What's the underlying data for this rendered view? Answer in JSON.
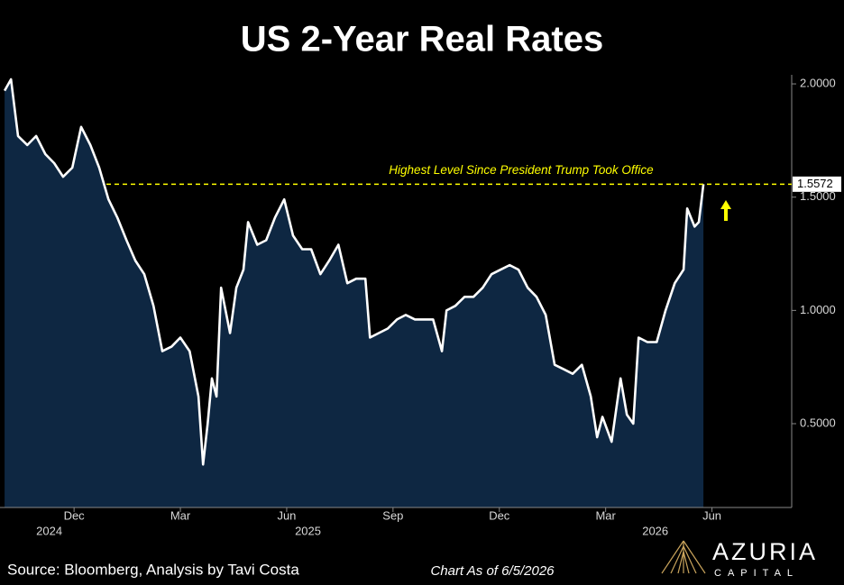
{
  "chart_data": {
    "type": "area",
    "title": "US 2-Year Real Rates",
    "color": "#ffffff",
    "fill_color": "#0e2742",
    "x": [
      -1.96,
      -1.78,
      -1.58,
      -1.32,
      -1.07,
      -0.81,
      -0.56,
      -0.31,
      -0.05,
      0.2,
      0.46,
      0.71,
      0.97,
      1.22,
      1.48,
      1.73,
      1.98,
      2.24,
      2.49,
      2.75,
      3.0,
      3.26,
      3.51,
      3.64,
      3.77,
      3.89,
      4.02,
      4.15,
      4.4,
      4.58,
      4.78,
      4.91,
      5.17,
      5.42,
      5.67,
      5.93,
      6.18,
      6.44,
      6.69,
      6.95,
      7.2,
      7.46,
      7.71,
      7.96,
      8.22,
      8.35,
      8.6,
      8.85,
      9.11,
      9.36,
      9.62,
      9.87,
      10.13,
      10.38,
      10.51,
      10.76,
      11.02,
      11.27,
      11.53,
      11.78,
      12.04,
      12.29,
      12.54,
      12.8,
      13.05,
      13.31,
      13.56,
      13.82,
      14.07,
      14.33,
      14.58,
      14.76,
      14.91,
      15.17,
      15.42,
      15.6,
      15.78,
      15.93,
      16.18,
      16.44,
      16.69,
      16.95,
      17.2,
      17.3,
      17.51,
      17.63,
      17.76
    ],
    "values": [
      1.97,
      2.02,
      1.77,
      1.73,
      1.77,
      1.69,
      1.65,
      1.59,
      1.63,
      1.81,
      1.73,
      1.63,
      1.49,
      1.41,
      1.31,
      1.22,
      1.16,
      1.02,
      0.82,
      0.84,
      0.88,
      0.82,
      0.62,
      0.32,
      0.5,
      0.7,
      0.62,
      1.1,
      0.9,
      1.1,
      1.18,
      1.39,
      1.29,
      1.31,
      1.41,
      1.49,
      1.33,
      1.27,
      1.27,
      1.16,
      1.22,
      1.29,
      1.12,
      1.14,
      1.14,
      0.88,
      0.9,
      0.92,
      0.96,
      0.98,
      0.96,
      0.96,
      0.96,
      0.82,
      1.0,
      1.02,
      1.06,
      1.06,
      1.1,
      1.16,
      1.18,
      1.2,
      1.18,
      1.1,
      1.06,
      0.98,
      0.76,
      0.74,
      0.72,
      0.76,
      0.62,
      0.44,
      0.53,
      0.42,
      0.7,
      0.54,
      0.5,
      0.88,
      0.86,
      0.86,
      1.0,
      1.12,
      1.18,
      1.45,
      1.37,
      1.39,
      1.5572
    ],
    "xlim": [
      -2.09,
      20.25
    ],
    "ylim": [
      0.13,
      2.04
    ],
    "xticks": [
      {
        "value": 0,
        "label": "Dec"
      },
      {
        "value": 3,
        "label": "Mar"
      },
      {
        "value": 6,
        "label": "Jun"
      },
      {
        "value": 9,
        "label": "Sep"
      },
      {
        "value": 12,
        "label": "Dec"
      },
      {
        "value": 15,
        "label": "Mar"
      },
      {
        "value": 18,
        "label": "Jun"
      }
    ],
    "year_labels": [
      {
        "value": -0.7,
        "label": "2024"
      },
      {
        "value": 6.6,
        "label": "2025"
      },
      {
        "value": 16.4,
        "label": "2026"
      }
    ],
    "yticks": [
      {
        "value": 0.5,
        "label": "0.5000"
      },
      {
        "value": 1,
        "label": "1.0000"
      },
      {
        "value": 1.5,
        "label": "1.5000"
      },
      {
        "value": 2,
        "label": "2.0000"
      }
    ],
    "reference_line": {
      "value": 1.5572,
      "label": "Highest Level Since President Trump Took Office",
      "color": "#ffff00"
    },
    "source": "Source: Bloomberg, Analysis by Tavi Costa",
    "note": "Chart As of 6/5/2026",
    "brand": {
      "name": "AZURIA",
      "tagline": "CAPITAL"
    }
  }
}
